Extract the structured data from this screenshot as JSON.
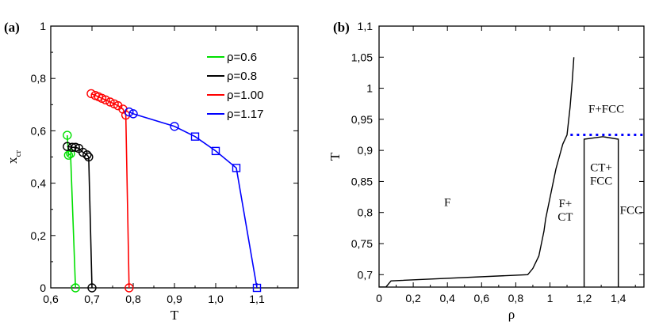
{
  "chart_data": [
    {
      "type": "line",
      "panel_label": "(a)",
      "xlabel": "T",
      "ylabel": "x",
      "ylabel_sub": "cr",
      "xlim": [
        0.6,
        1.2
      ],
      "ylim": [
        0,
        1
      ],
      "x_ticks": [
        {
          "value": 0.6,
          "label": "0,6"
        },
        {
          "value": 0.7,
          "label": "0,7"
        },
        {
          "value": 0.8,
          "label": "0,8"
        },
        {
          "value": 0.9,
          "label": "0,9"
        },
        {
          "value": 1.0,
          "label": "1,0"
        },
        {
          "value": 1.1,
          "label": "1,1"
        }
      ],
      "y_ticks": [
        {
          "value": 0,
          "label": "0"
        },
        {
          "value": 0.2,
          "label": "0,2"
        },
        {
          "value": 0.4,
          "label": "0,4"
        },
        {
          "value": 0.6,
          "label": "0,6"
        },
        {
          "value": 0.8,
          "label": "0,8"
        },
        {
          "value": 1,
          "label": "1"
        }
      ],
      "legend_position": "top-right",
      "series": [
        {
          "name": "ρ=0.6",
          "color": "#00e000",
          "points": [
            {
              "x": 0.64,
              "y": 0.583,
              "m": "circle"
            },
            {
              "x": 0.643,
              "y": 0.507,
              "m": "circle"
            },
            {
              "x": 0.648,
              "y": 0.513,
              "m": "circle"
            },
            {
              "x": 0.66,
              "y": 0.0,
              "m": "circle"
            }
          ]
        },
        {
          "name": "ρ=0.8",
          "color": "#000000",
          "points": [
            {
              "x": 0.64,
              "y": 0.54,
              "m": "circle"
            },
            {
              "x": 0.652,
              "y": 0.537,
              "m": "circle"
            },
            {
              "x": 0.66,
              "y": 0.537,
              "m": "circle"
            },
            {
              "x": 0.668,
              "y": 0.533,
              "m": "circle"
            },
            {
              "x": 0.678,
              "y": 0.518,
              "m": "circle"
            },
            {
              "x": 0.688,
              "y": 0.508,
              "m": "circle"
            },
            {
              "x": 0.692,
              "y": 0.5,
              "m": "circle"
            },
            {
              "x": 0.7,
              "y": 0.0,
              "m": "circle"
            }
          ]
        },
        {
          "name": "ρ=1.00",
          "color": "#ff0000",
          "points": [
            {
              "x": 0.698,
              "y": 0.742,
              "m": "circle"
            },
            {
              "x": 0.708,
              "y": 0.735,
              "m": "circle"
            },
            {
              "x": 0.716,
              "y": 0.73,
              "m": "circle"
            },
            {
              "x": 0.724,
              "y": 0.724,
              "m": "circle"
            },
            {
              "x": 0.733,
              "y": 0.718,
              "m": "circle"
            },
            {
              "x": 0.744,
              "y": 0.71,
              "m": "circle"
            },
            {
              "x": 0.754,
              "y": 0.703,
              "m": "circle"
            },
            {
              "x": 0.763,
              "y": 0.696,
              "m": "circle"
            },
            {
              "x": 0.775,
              "y": 0.683,
              "m": "circle"
            },
            {
              "x": 0.782,
              "y": 0.66,
              "m": "circle"
            },
            {
              "x": 0.79,
              "y": 0.0,
              "m": "circle"
            }
          ]
        },
        {
          "name": "ρ=1.17",
          "color": "#0000ff",
          "points": [
            {
              "x": 0.79,
              "y": 0.672,
              "m": "circle"
            },
            {
              "x": 0.8,
              "y": 0.665,
              "m": "circle"
            },
            {
              "x": 0.9,
              "y": 0.617,
              "m": "circle"
            },
            {
              "x": 0.95,
              "y": 0.578,
              "m": "square"
            },
            {
              "x": 1.0,
              "y": 0.523,
              "m": "square"
            },
            {
              "x": 1.05,
              "y": 0.458,
              "m": "square"
            },
            {
              "x": 1.1,
              "y": 0.0,
              "m": "square"
            }
          ]
        }
      ]
    },
    {
      "type": "line",
      "panel_label": "(b)",
      "xlabel": "ρ",
      "ylabel": "T",
      "xlim": [
        0,
        1.55
      ],
      "ylim": [
        0.68,
        1.1
      ],
      "x_ticks": [
        {
          "value": 0,
          "label": "0"
        },
        {
          "value": 0.2,
          "label": "0,2"
        },
        {
          "value": 0.4,
          "label": "0,4"
        },
        {
          "value": 0.6,
          "label": "0,6"
        },
        {
          "value": 0.8,
          "label": "0,8"
        },
        {
          "value": 1.0,
          "label": "1"
        },
        {
          "value": 1.2,
          "label": "1,2"
        },
        {
          "value": 1.4,
          "label": "1,4"
        }
      ],
      "y_ticks": [
        {
          "value": 0.7,
          "label": "0,7"
        },
        {
          "value": 0.75,
          "label": "0,75"
        },
        {
          "value": 0.8,
          "label": "0,8"
        },
        {
          "value": 0.85,
          "label": "0,85"
        },
        {
          "value": 0.9,
          "label": "0,9"
        },
        {
          "value": 0.95,
          "label": "0,95"
        },
        {
          "value": 1.0,
          "label": "1"
        },
        {
          "value": 1.05,
          "label": "1,05"
        },
        {
          "value": 1.1,
          "label": "1,1"
        }
      ],
      "series": [
        {
          "color": "#000000",
          "style": "solid",
          "points": [
            [
              0.0,
              0.68
            ],
            [
              0.04,
              0.68
            ],
            [
              0.07,
              0.69
            ],
            [
              0.87,
              0.7
            ],
            [
              0.9,
              0.71
            ],
            [
              0.935,
              0.73
            ],
            [
              0.95,
              0.75
            ],
            [
              0.965,
              0.77
            ],
            [
              0.975,
              0.79
            ],
            [
              0.99,
              0.81
            ],
            [
              1.005,
              0.83
            ],
            [
              1.02,
              0.85
            ],
            [
              1.035,
              0.87
            ],
            [
              1.055,
              0.89
            ],
            [
              1.075,
              0.91
            ],
            [
              1.1,
              0.925
            ],
            [
              1.118,
              0.97
            ],
            [
              1.13,
              1.01
            ],
            [
              1.14,
              1.05
            ]
          ]
        },
        {
          "color": "#000000",
          "style": "solid",
          "points": [
            [
              1.2,
              0.68
            ],
            [
              1.2,
              0.918
            ],
            [
              1.31,
              0.922
            ],
            [
              1.4,
              0.918
            ],
            [
              1.4,
              0.68
            ]
          ]
        },
        {
          "color": "#0000ff",
          "style": "dotted",
          "points": [
            [
              1.12,
              0.925
            ],
            [
              1.55,
              0.925
            ]
          ]
        }
      ],
      "annotations": [
        {
          "lines": [
            "F"
          ],
          "x": 0.4,
          "y": 0.817
        },
        {
          "lines": [
            "F+",
            "CT"
          ],
          "x": 1.09,
          "y": 0.804
        },
        {
          "lines": [
            "CT+",
            "FCC"
          ],
          "x": 1.3,
          "y": 0.862
        },
        {
          "lines": [
            "FCC"
          ],
          "x": 1.475,
          "y": 0.804
        },
        {
          "lines": [
            "F+FCC"
          ],
          "x": 1.33,
          "y": 0.967
        }
      ]
    }
  ]
}
